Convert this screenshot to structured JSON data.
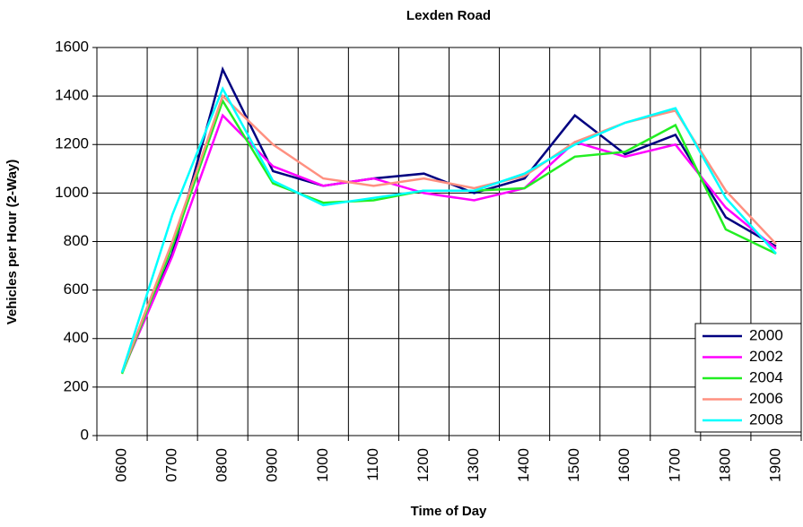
{
  "chart_data": {
    "type": "line",
    "title": "Lexden Road",
    "x_label": "Time of Day",
    "y_label": "Vehicles per Hour (2-Way)",
    "categories": [
      "0600",
      "0700",
      "0800",
      "0900",
      "1000",
      "1100",
      "1200",
      "1300",
      "1400",
      "1500",
      "1600",
      "1700",
      "1800",
      "1900"
    ],
    "series": [
      {
        "name": "2000",
        "color": "#000080",
        "values": [
          260,
          750,
          1510,
          1090,
          1030,
          1060,
          1080,
          1000,
          1060,
          1320,
          1160,
          1240,
          900,
          780
        ]
      },
      {
        "name": "2002",
        "color": "#ff00ff",
        "values": [
          260,
          740,
          1320,
          1110,
          1030,
          1060,
          1000,
          970,
          1020,
          1210,
          1150,
          1200,
          940,
          770
        ]
      },
      {
        "name": "2004",
        "color": "#22ee22",
        "values": [
          255,
          780,
          1380,
          1040,
          960,
          970,
          1010,
          1010,
          1020,
          1150,
          1170,
          1280,
          850,
          750
        ]
      },
      {
        "name": "2006",
        "color": "#ff9080",
        "values": [
          260,
          800,
          1400,
          1200,
          1060,
          1030,
          1060,
          1020,
          1070,
          1210,
          1290,
          1340,
          1010,
          790
        ]
      },
      {
        "name": "2008",
        "color": "#00ffff",
        "values": [
          260,
          910,
          1430,
          1050,
          950,
          980,
          1010,
          1010,
          1080,
          1200,
          1290,
          1350,
          980,
          750
        ]
      }
    ],
    "ylim": [
      0,
      1600
    ],
    "yticks": [
      0,
      200,
      400,
      600,
      800,
      1000,
      1200,
      1400,
      1600
    ],
    "grid": true,
    "legend": "lower right"
  }
}
